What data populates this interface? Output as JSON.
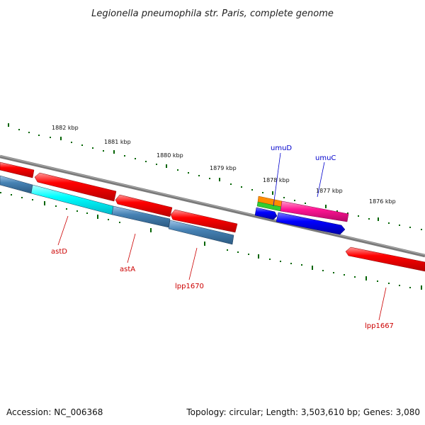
{
  "title": "Legionella pneumophila str. Paris, complete genome",
  "kbp_ticks": [
    "1882 kbp",
    "1881 kbp",
    "1880 kbp",
    "1879 kbp",
    "1878 kbp",
    "1877 kbp",
    "1876 kbp"
  ],
  "genes": {
    "astD": "astD",
    "astA": "astA",
    "lpp1670": "lpp1670",
    "umuD": "umuD",
    "umuC": "umuC",
    "lpp1667": "lpp1667"
  },
  "colors": {
    "forward_cds": "#ff0000",
    "reverse_cds": "#4682b4",
    "highlight_cds": "#00ffff",
    "blue_cds": "#0000ff",
    "magenta_cds": "#ff1493",
    "orange_cds": "#ff8c00",
    "green_cds": "#32cd32",
    "backbone": "#808080",
    "tick_green": "#006400",
    "label_red": "#cc0000",
    "label_blue": "#0000cc"
  },
  "footer": {
    "accession": "Accession: NC_006368",
    "summary": "Topology: circular; Length: 3,503,610 bp; Genes: 3,080"
  }
}
